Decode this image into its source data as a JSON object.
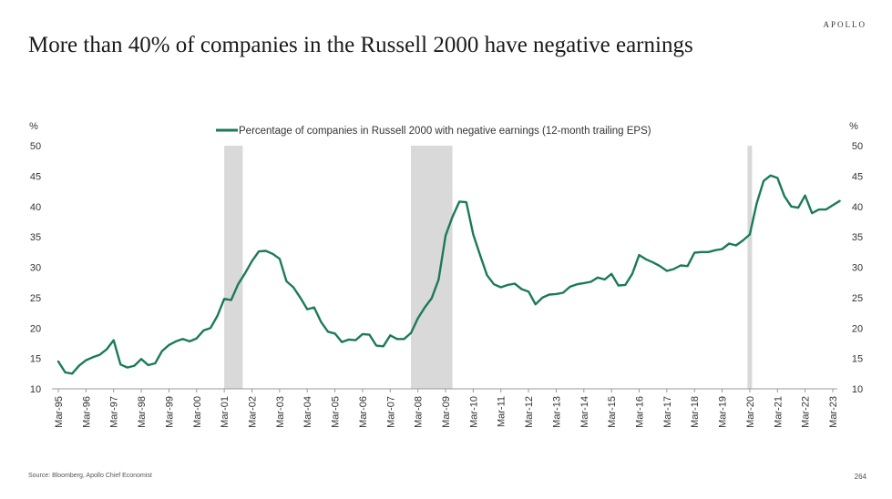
{
  "brand": "APOLLO",
  "title": "More than 40% of companies in the Russell 2000 have negative earnings",
  "source": "Source: Bloomberg, Apollo Chief Economist",
  "page_number": "264",
  "chart_data": {
    "type": "line",
    "title": "More than 40% of companies in the Russell 2000 have negative earnings",
    "ylabel_left": "%",
    "ylabel_right": "%",
    "ylim": [
      10,
      50
    ],
    "yticks": [
      10,
      15,
      20,
      25,
      30,
      35,
      40,
      45,
      50
    ],
    "xlim": [
      "Mar-95",
      "Mar-23"
    ],
    "xticks": [
      "Mar-95",
      "Mar-96",
      "Mar-97",
      "Mar-98",
      "Mar-99",
      "Mar-00",
      "Mar-01",
      "Mar-02",
      "Mar-03",
      "Mar-04",
      "Mar-05",
      "Mar-06",
      "Mar-07",
      "Mar-08",
      "Mar-09",
      "Mar-10",
      "Mar-11",
      "Mar-12",
      "Mar-13",
      "Mar-14",
      "Mar-15",
      "Mar-16",
      "Mar-17",
      "Mar-18",
      "Mar-19",
      "Mar-20",
      "Mar-21",
      "Mar-22",
      "Mar-23"
    ],
    "grid": false,
    "legend_position": "top-center",
    "line_color": "#1b7a5a",
    "recession_color": "#d9d9d9",
    "recessions": [
      [
        "Mar-01",
        "Nov-01"
      ],
      [
        "Dec-07",
        "Jun-09"
      ],
      [
        "Feb-20",
        "Apr-20"
      ]
    ],
    "series": [
      {
        "name": "Percentage of companies in Russell 2000 with negative earnings (12-month trailing EPS)",
        "points": [
          [
            "Mar-95",
            14.5
          ],
          [
            "Jun-95",
            12.7
          ],
          [
            "Sep-95",
            12.5
          ],
          [
            "Dec-95",
            13.8
          ],
          [
            "Mar-96",
            14.7
          ],
          [
            "Jun-96",
            15.2
          ],
          [
            "Sep-96",
            15.6
          ],
          [
            "Dec-96",
            16.5
          ],
          [
            "Mar-97",
            18.0
          ],
          [
            "Jun-97",
            14.0
          ],
          [
            "Sep-97",
            13.5
          ],
          [
            "Dec-97",
            13.8
          ],
          [
            "Mar-98",
            14.9
          ],
          [
            "Jun-98",
            13.9
          ],
          [
            "Sep-98",
            14.2
          ],
          [
            "Dec-98",
            16.2
          ],
          [
            "Mar-99",
            17.2
          ],
          [
            "Jun-99",
            17.8
          ],
          [
            "Sep-99",
            18.2
          ],
          [
            "Dec-99",
            17.8
          ],
          [
            "Mar-00",
            18.3
          ],
          [
            "Jun-00",
            19.6
          ],
          [
            "Sep-00",
            20.0
          ],
          [
            "Dec-00",
            22.0
          ],
          [
            "Mar-01",
            24.8
          ],
          [
            "Jun-01",
            24.6
          ],
          [
            "Sep-01",
            27.2
          ],
          [
            "Dec-01",
            29.0
          ],
          [
            "Mar-02",
            31.0
          ],
          [
            "Jun-02",
            32.6
          ],
          [
            "Sep-02",
            32.7
          ],
          [
            "Dec-02",
            32.2
          ],
          [
            "Mar-03",
            31.4
          ],
          [
            "Jun-03",
            27.7
          ],
          [
            "Sep-03",
            26.7
          ],
          [
            "Dec-03",
            25.0
          ],
          [
            "Mar-04",
            23.1
          ],
          [
            "Jun-04",
            23.4
          ],
          [
            "Sep-04",
            21.0
          ],
          [
            "Dec-04",
            19.4
          ],
          [
            "Mar-05",
            19.1
          ],
          [
            "Jun-05",
            17.7
          ],
          [
            "Sep-05",
            18.1
          ],
          [
            "Dec-05",
            18.0
          ],
          [
            "Mar-06",
            19.0
          ],
          [
            "Jun-06",
            18.9
          ],
          [
            "Sep-06",
            17.1
          ],
          [
            "Dec-06",
            17.0
          ],
          [
            "Mar-07",
            18.8
          ],
          [
            "Jun-07",
            18.2
          ],
          [
            "Sep-07",
            18.2
          ],
          [
            "Dec-07",
            19.2
          ],
          [
            "Mar-08",
            21.6
          ],
          [
            "Jun-08",
            23.4
          ],
          [
            "Sep-08",
            24.9
          ],
          [
            "Dec-08",
            28.0
          ],
          [
            "Mar-09",
            35.2
          ],
          [
            "Jun-09",
            38.3
          ],
          [
            "Sep-09",
            40.8
          ],
          [
            "Dec-09",
            40.7
          ],
          [
            "Mar-10",
            35.4
          ],
          [
            "Jun-10",
            32.0
          ],
          [
            "Sep-10",
            28.7
          ],
          [
            "Dec-10",
            27.2
          ],
          [
            "Mar-11",
            26.7
          ],
          [
            "Jun-11",
            27.1
          ],
          [
            "Sep-11",
            27.3
          ],
          [
            "Dec-11",
            26.4
          ],
          [
            "Mar-12",
            26.0
          ],
          [
            "Jun-12",
            23.9
          ],
          [
            "Sep-12",
            25.0
          ],
          [
            "Dec-12",
            25.5
          ],
          [
            "Mar-13",
            25.6
          ],
          [
            "Jun-13",
            25.8
          ],
          [
            "Sep-13",
            26.8
          ],
          [
            "Dec-13",
            27.2
          ],
          [
            "Mar-14",
            27.4
          ],
          [
            "Jun-14",
            27.6
          ],
          [
            "Sep-14",
            28.3
          ],
          [
            "Dec-14",
            28.0
          ],
          [
            "Mar-15",
            28.9
          ],
          [
            "Jun-15",
            27.0
          ],
          [
            "Sep-15",
            27.1
          ],
          [
            "Dec-15",
            28.9
          ],
          [
            "Mar-16",
            32.0
          ],
          [
            "Jun-16",
            31.3
          ],
          [
            "Sep-16",
            30.8
          ],
          [
            "Dec-16",
            30.2
          ],
          [
            "Mar-17",
            29.4
          ],
          [
            "Jun-17",
            29.7
          ],
          [
            "Sep-17",
            30.3
          ],
          [
            "Dec-17",
            30.2
          ],
          [
            "Mar-18",
            32.4
          ],
          [
            "Jun-18",
            32.5
          ],
          [
            "Sep-18",
            32.5
          ],
          [
            "Dec-18",
            32.8
          ],
          [
            "Mar-19",
            33.0
          ],
          [
            "Jun-19",
            33.9
          ],
          [
            "Sep-19",
            33.6
          ],
          [
            "Dec-19",
            34.4
          ],
          [
            "Mar-20",
            35.4
          ],
          [
            "Jun-20",
            40.5
          ],
          [
            "Sep-20",
            44.2
          ],
          [
            "Dec-20",
            45.1
          ],
          [
            "Mar-21",
            44.7
          ],
          [
            "Jun-21",
            41.7
          ],
          [
            "Sep-21",
            40.0
          ],
          [
            "Dec-21",
            39.8
          ],
          [
            "Mar-22",
            41.8
          ],
          [
            "Jun-22",
            38.9
          ],
          [
            "Sep-22",
            39.5
          ],
          [
            "Dec-22",
            39.5
          ],
          [
            "Mar-23",
            40.2
          ],
          [
            "Jun-23",
            40.9
          ]
        ]
      }
    ]
  }
}
